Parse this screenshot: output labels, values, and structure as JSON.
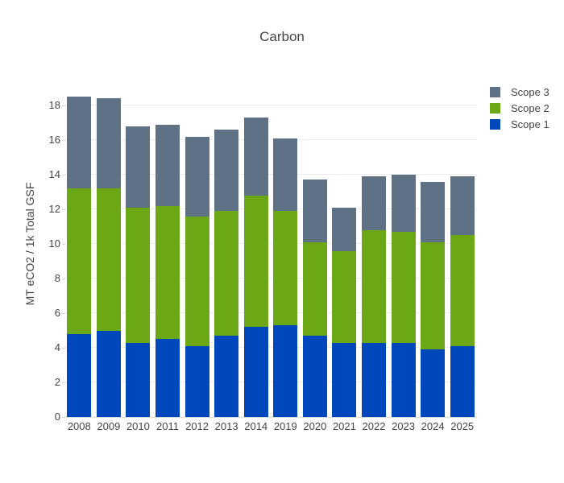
{
  "chart_data": {
    "type": "bar",
    "stacked": true,
    "title": "Carbon",
    "xlabel": "",
    "ylabel": "MT eCO2 / 1k Total GSF",
    "categories": [
      "2008",
      "2009",
      "2010",
      "2011",
      "2012",
      "2013",
      "2014",
      "2019",
      "2020",
      "2021",
      "2022",
      "2023",
      "2024",
      "2025"
    ],
    "series": [
      {
        "name": "Scope 1",
        "color": "#0047BB",
        "values": [
          4.8,
          5.0,
          4.3,
          4.5,
          4.1,
          4.7,
          5.2,
          5.3,
          4.7,
          4.3,
          4.3,
          4.3,
          3.9,
          4.1
        ]
      },
      {
        "name": "Scope 2",
        "color": "#6CA816",
        "values": [
          8.4,
          8.2,
          7.8,
          7.7,
          7.5,
          7.2,
          7.6,
          6.6,
          5.4,
          5.3,
          6.5,
          6.4,
          6.2,
          6.4
        ]
      },
      {
        "name": "Scope 3",
        "color": "#5F7285",
        "values": [
          5.3,
          5.2,
          4.7,
          4.7,
          4.6,
          4.7,
          4.5,
          4.2,
          3.6,
          2.5,
          3.1,
          3.3,
          3.5,
          3.4
        ]
      }
    ],
    "totals": [
      18.5,
      18.4,
      16.8,
      16.9,
      16.2,
      16.6,
      17.3,
      16.1,
      13.7,
      12.1,
      13.9,
      14.0,
      13.6,
      13.9
    ],
    "ylim": [
      0,
      20
    ],
    "yticks": [
      0,
      2,
      4,
      6,
      8,
      10,
      12,
      14,
      16,
      18
    ],
    "grid": true,
    "legend_position": "top-right",
    "legend_order": [
      "Scope 3",
      "Scope 2",
      "Scope 1"
    ],
    "colors": {
      "scope1_blue": "#0047BB",
      "scope2_green": "#6CA816",
      "scope3_slate": "#5F7285",
      "axis_text": "#444444",
      "gridline": "#ececec",
      "background": "#ffffff"
    }
  }
}
